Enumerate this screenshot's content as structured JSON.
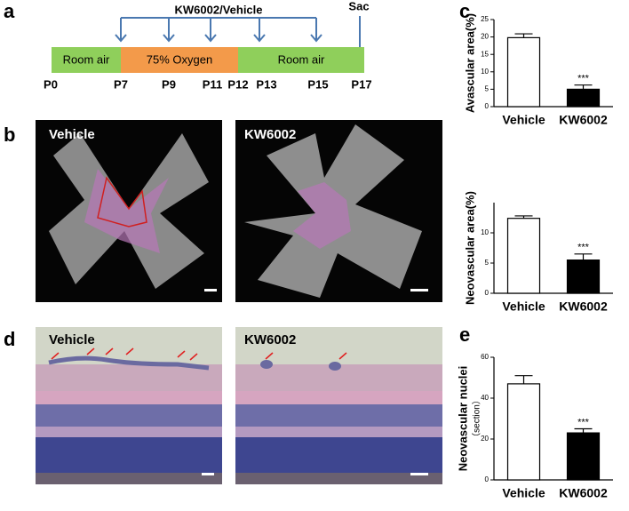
{
  "panels": [
    "a",
    "b",
    "c",
    "d",
    "e"
  ],
  "timeline": {
    "title": "KW6002/Vehicle",
    "end_label": "Sac",
    "segments": [
      "Room air",
      "75% Oxygen",
      "Room air"
    ],
    "days": [
      "P0",
      "P7",
      "P9",
      "P11",
      "P12",
      "P13",
      "P15",
      "P17"
    ]
  },
  "images": {
    "flatmounts": [
      "Vehicle",
      "KW6002"
    ],
    "sections": [
      "Vehicle",
      "KW6002"
    ]
  },
  "chart_data": [
    {
      "type": "bar",
      "ylabel": "Avascular area(%)",
      "categories": [
        "Vehicle",
        "KW6002"
      ],
      "values": [
        19.8,
        5.0
      ],
      "errors": [
        1.1,
        1.2
      ],
      "colors": [
        "#ffffff",
        "#000000"
      ],
      "annotations": [
        null,
        "***"
      ],
      "ylim": [
        0,
        25
      ],
      "yticks": [
        0,
        5,
        10,
        15,
        20,
        25
      ]
    },
    {
      "type": "bar",
      "ylabel": "Neovascular area(%)",
      "categories": [
        "Vehicle",
        "KW6002"
      ],
      "values": [
        12.4,
        5.5
      ],
      "errors": [
        0.4,
        1.0
      ],
      "colors": [
        "#ffffff",
        "#000000"
      ],
      "annotations": [
        null,
        "***"
      ],
      "ylim": [
        0,
        15
      ],
      "yticks": [
        0,
        5,
        10
      ]
    },
    {
      "type": "bar",
      "ylabel": "Neovascular nuclei",
      "ylabel_sub": "（section）",
      "categories": [
        "Vehicle",
        "KW6002"
      ],
      "values": [
        47,
        23
      ],
      "errors": [
        4,
        2
      ],
      "colors": [
        "#ffffff",
        "#000000"
      ],
      "annotations": [
        null,
        "***"
      ],
      "ylim": [
        0,
        60
      ],
      "yticks": [
        0,
        20,
        40,
        60
      ]
    }
  ]
}
